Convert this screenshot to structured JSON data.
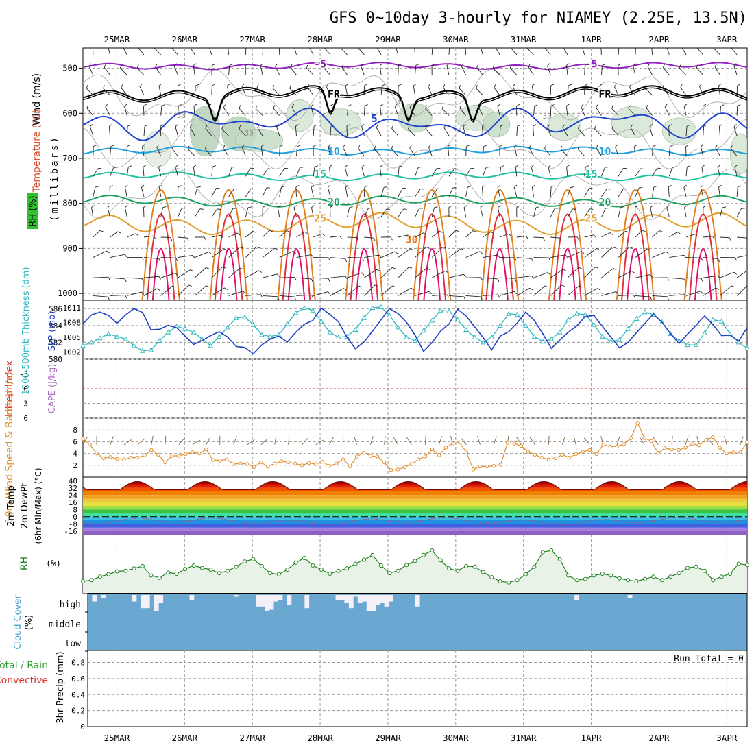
{
  "chart_data": {
    "type": "meteogram",
    "title": "GFS 0~10day 3-hourly for NIAMEY (2.25E, 13.5N)",
    "date_labels": [
      "25MAR",
      "26MAR",
      "27MAR",
      "28MAR",
      "29MAR",
      "30MAR",
      "31MAR",
      "1APR",
      "2APR",
      "3APR"
    ],
    "x_range_days": [
      -0.5,
      9.3
    ],
    "upper_air": {
      "ylabel": [
        "Wind (m/s)",
        "Temperature (°C)",
        "RH (%)",
        "(millibars)"
      ],
      "pressure_ticks": [
        "500",
        "600",
        "700",
        "800",
        "900",
        "1000"
      ],
      "pressure_range_mb": [
        455,
        1015
      ],
      "isotherms": [
        {
          "value": -5,
          "mean_mb": 495,
          "amp": 5,
          "color": "#9020c0",
          "labels": [
            "-5",
            "-5"
          ]
        },
        {
          "value": 0,
          "mean_mb": 555,
          "amp": 10,
          "color": "#000000",
          "labels": [
            "FR",
            "FR"
          ]
        },
        {
          "value": 5,
          "mean_mb": 623,
          "amp": 14,
          "color": "#2040d0",
          "labels": [
            "5"
          ]
        },
        {
          "value": 10,
          "mean_mb": 683,
          "amp": 6,
          "color": "#20a0e0",
          "labels": [
            "10",
            "10"
          ]
        },
        {
          "value": 15,
          "mean_mb": 740,
          "amp": 6,
          "color": "#20c0a0",
          "labels": [
            "15",
            "15"
          ]
        },
        {
          "value": 20,
          "mean_mb": 795,
          "amp": 8,
          "color": "#20a060",
          "labels": [
            "20",
            "20"
          ]
        },
        {
          "value": 25,
          "mean_mb": 845,
          "amp": 15,
          "color": "#e0a030",
          "labels": [
            "25",
            "25"
          ]
        }
      ],
      "rh_labels": [
        "30",
        "30",
        "30",
        "10"
      ],
      "warm_labels": [
        "30"
      ]
    },
    "thickness_slp": {
      "ylabel_left": "1000-500mb Thickness (dm)",
      "ylabel_right": "SLP (mb)",
      "thickness_ticks": [
        "586",
        "584",
        "582",
        "580"
      ],
      "slp_ticks": [
        "1011",
        "1008",
        "1005",
        "1002"
      ],
      "thickness_range": [
        580,
        587
      ],
      "slp_range": [
        1000.5,
        1012.5
      ],
      "thickness": [
        581.6,
        582.0,
        582.5,
        583.0,
        582.7,
        582.4,
        581.6,
        581.0,
        581.1,
        582.2,
        583.2,
        583.9,
        583.6,
        583.2,
        582.4,
        581.6,
        582.7,
        583.8,
        584.9,
        585.0,
        584.1,
        582.9,
        582.7,
        582.9,
        584.2,
        585.5,
        586.1,
        585.8,
        584.5,
        583.2,
        582.6,
        582.7,
        583.5,
        584.9,
        586.1,
        586.2,
        585.2,
        583.8,
        582.6,
        582.2,
        583.4,
        584.6,
        585.8,
        585.7,
        584.7,
        583.5,
        582.6,
        582.0,
        582.6,
        584.0,
        585.4,
        585.3,
        584.0,
        582.7,
        582.1,
        582.4,
        583.2,
        584.7,
        585.4,
        585.3,
        584.1,
        582.7,
        582.1,
        582.3,
        583.6,
        584.8,
        585.6,
        585.3,
        584.4,
        583.0,
        582.2,
        581.7,
        581.7,
        583.1,
        584.7,
        584.5,
        583.0,
        582.0,
        581.3
      ],
      "slp": [
        1007.7,
        1009.5,
        1010.1,
        1009.4,
        1007.8,
        1009.5,
        1010.8,
        1010.0,
        1006.5,
        1006.6,
        1007.4,
        1006.9,
        1005.2,
        1003.5,
        1004.3,
        1005.3,
        1006.1,
        1005.0,
        1003.1,
        1002.9,
        1001.6,
        1003.4,
        1004.6,
        1005.2,
        1004.0,
        1006.0,
        1007.6,
        1008.4,
        1010.9,
        1009.6,
        1008.1,
        1005.0,
        1002.6,
        1004.0,
        1006.2,
        1008.5,
        1010.8,
        1009.8,
        1008.0,
        1005.4,
        1002.1,
        1003.9,
        1006.2,
        1007.7,
        1010.7,
        1009.3,
        1007.1,
        1004.9,
        1002.4,
        1005.2,
        1006.1,
        1007.9,
        1010.1,
        1008.4,
        1005.7,
        1002.7,
        1004.4,
        1006.0,
        1007.3,
        1009.2,
        1009.4,
        1007.2,
        1005.0,
        1002.8,
        1003.9,
        1005.9,
        1007.8,
        1009.7,
        1008.0,
        1005.7,
        1003.7,
        1005.6,
        1007.4,
        1009.3,
        1007.5,
        1005.3,
        1005.4,
        1004.2,
        1006.9
      ]
    },
    "cape_li": {
      "ylabel_left": "Lifted Index",
      "ylabel_right": "CAPE (J/kg)",
      "ticks": [
        "-3",
        "0",
        "3",
        "6"
      ],
      "tick_values": [
        -3,
        0,
        3,
        6
      ],
      "range": [
        -6,
        6
      ]
    },
    "wind10m": {
      "ylabel": "10m Wind Speed & Barbs (m/s)",
      "ticks": [
        "2",
        "4",
        "6",
        "8"
      ],
      "tick_values": [
        2,
        4,
        6,
        8
      ],
      "range": [
        0,
        10
      ],
      "speed": [
        6.5,
        5.5,
        4.0,
        3.2,
        3.4,
        3.1,
        3.0,
        3.3,
        3.3,
        3.7,
        4.6,
        3.8,
        2.5,
        3.6,
        3.6,
        3.9,
        4.2,
        4.0,
        4.7,
        2.9,
        2.8,
        3.0,
        2.2,
        2.3,
        2.2,
        1.7,
        2.5,
        1.8,
        2.3,
        2.7,
        2.5,
        2.3,
        2.0,
        2.4,
        2.2,
        2.6,
        1.9,
        2.3,
        3.0,
        1.8,
        3.5,
        4.1,
        3.6,
        3.5,
        2.5,
        1.2,
        1.3,
        1.7,
        2.2,
        3.0,
        3.5,
        4.7,
        3.7,
        5.0,
        5.7,
        5.9,
        4.2,
        1.3,
        1.8,
        1.8,
        1.9,
        2.1,
        5.8,
        5.7,
        5.3,
        4.3,
        3.8,
        3.3,
        3.0,
        3.2,
        3.8,
        3.3,
        3.9,
        4.3,
        4.6,
        3.9,
        5.5,
        5.2,
        5.2,
        5.6,
        6.6,
        9.2,
        6.6,
        6.1,
        4.1,
        4.9,
        4.7,
        4.6,
        5.0,
        5.6,
        5.4,
        6.3,
        6.8,
        5.0,
        4.0,
        4.2,
        4.2,
        5.9
      ]
    },
    "temp2m": {
      "ylabel": [
        "2m Temp",
        "2m DewPt",
        "(6hr Min/Max) (°C)"
      ],
      "ticks": [
        "40",
        "32",
        "24",
        "16",
        "8",
        "0",
        "-8",
        "-16"
      ],
      "tick_values": [
        40,
        32,
        24,
        16,
        8,
        0,
        -8,
        -16
      ],
      "range": [
        -20,
        44
      ],
      "band_colors": [
        "#780000",
        "#b00000",
        "#e02000",
        "#f05000",
        "#f08000",
        "#f0a020",
        "#f0c840",
        "#e8e040",
        "#a0e040",
        "#40c040",
        "#40e0a0",
        "#40c0e0",
        "#2090e0",
        "#4060e0",
        "#a080e0",
        "#9060c0",
        "#706080"
      ]
    },
    "rh2m": {
      "ylabel": "2m RH (%)",
      "range": [
        0,
        100
      ],
      "values": [
        20,
        22,
        28,
        32,
        37,
        38,
        42,
        46,
        30,
        26,
        35,
        33,
        41,
        47,
        43,
        40,
        34,
        38,
        45,
        54,
        58,
        46,
        34,
        32,
        40,
        52,
        60,
        47,
        40,
        33,
        38,
        42,
        50,
        57,
        65,
        47,
        34,
        38,
        48,
        55,
        65,
        73,
        56,
        42,
        38,
        46,
        45,
        36,
        27,
        20,
        18,
        22,
        32,
        45,
        70,
        73,
        58,
        30,
        22,
        24,
        30,
        33,
        30,
        25,
        22,
        20,
        24,
        28,
        22,
        28,
        34,
        43,
        45,
        38,
        22,
        28,
        33,
        50,
        48
      ]
    },
    "cloud": {
      "ylabel": "Cloud Cover (%)",
      "levels": [
        "high",
        "middle",
        "low"
      ],
      "high": [
        0,
        40,
        0,
        20,
        0,
        0,
        0,
        0,
        0,
        0,
        40,
        0,
        80,
        80,
        0,
        100,
        50,
        0,
        0,
        0,
        0,
        0,
        0,
        30,
        0,
        0,
        0,
        0,
        0,
        0,
        0,
        0,
        0,
        10,
        0,
        0,
        0,
        0,
        70,
        70,
        100,
        90,
        40,
        30,
        0,
        60,
        0,
        0,
        0,
        80,
        0,
        0,
        0,
        0,
        0,
        0,
        30,
        30,
        50,
        80,
        10,
        50,
        40,
        100,
        100,
        60,
        50,
        70,
        40,
        0,
        0,
        0,
        0,
        0,
        70,
        0,
        0,
        0,
        0,
        0,
        0,
        0,
        0,
        0,
        0,
        0,
        0,
        0,
        0,
        0,
        0,
        0,
        0,
        0,
        0,
        0,
        0,
        0,
        0,
        0,
        0,
        0,
        0,
        0,
        0,
        0,
        0,
        0,
        0,
        0,
        30,
        0,
        0,
        0,
        0,
        0,
        0,
        0,
        0,
        0,
        0,
        0,
        20,
        0,
        0,
        0,
        0,
        0,
        0,
        0,
        0,
        0,
        0,
        0,
        0,
        0,
        0,
        0,
        0,
        0,
        0,
        0,
        0,
        0,
        0,
        0,
        0,
        0,
        0
      ]
    },
    "precip": {
      "ylabel_a": "Total / Rain",
      "ylabel_b": "Convective",
      "ylabel_c": "3hr Precip (mm)",
      "run_total": "Run Total = 0",
      "ticks": [
        "0",
        "0.2",
        "0.4",
        "0.6",
        "0.8"
      ],
      "tick_values": [
        0,
        0.2,
        0.4,
        0.6,
        0.8
      ],
      "range": [
        0,
        0.95
      ],
      "values": []
    }
  }
}
